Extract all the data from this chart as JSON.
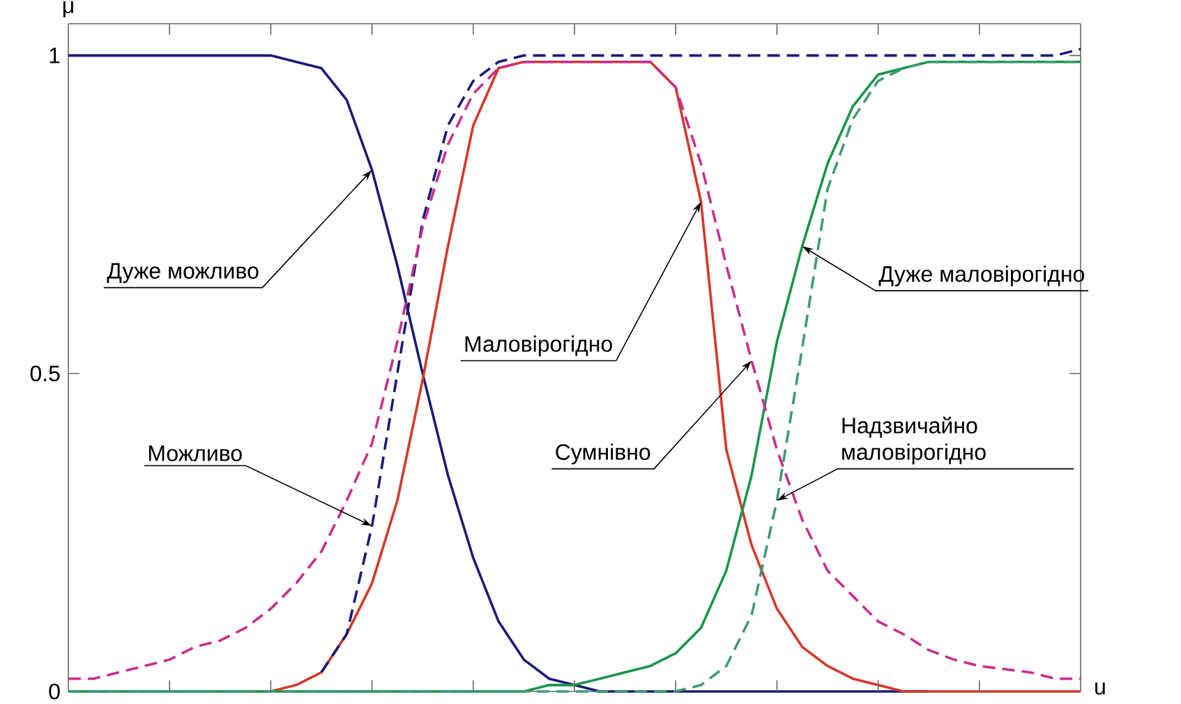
{
  "chart_data": {
    "type": "line",
    "xlabel": "u",
    "ylabel": "μ",
    "categories": [
      null,
      null,
      null,
      null,
      null,
      null,
      null,
      null,
      null,
      null,
      null,
      null,
      null,
      null,
      null,
      null,
      null,
      null,
      null,
      null,
      null,
      null,
      null,
      null,
      null,
      null,
      null,
      null,
      null,
      null,
      null,
      null,
      null,
      null,
      null,
      null,
      null,
      null,
      null,
      null,
      null
    ],
    "ylim": [
      0,
      1.05
    ],
    "yticks": [
      0,
      0.5,
      1
    ],
    "tick_labels": "y",
    "annotations": [
      "Дуже можливо",
      "Можливо",
      "Маловірогідно",
      "Сумнівно",
      "Дуже маловірогідно",
      "Надзвичайно маловірогідно"
    ],
    "series": [
      {
        "color": "#1c1a78",
        "line_style": "solid",
        "values": [
          1,
          1,
          1,
          1,
          1,
          1,
          1,
          1,
          1,
          0.99,
          0.98,
          0.93,
          0.82,
          0.67,
          0.5,
          0.34,
          0.21,
          0.11,
          0.05,
          0.02,
          0.01,
          0,
          0,
          0,
          0,
          0,
          0,
          0,
          0,
          0,
          0,
          0,
          0,
          0,
          0,
          null,
          null,
          null,
          null,
          null,
          null
        ]
      },
      {
        "color": "#1c1a78",
        "line_style": "dashed",
        "values": [
          null,
          null,
          null,
          null,
          null,
          null,
          null,
          null,
          null,
          null,
          0.03,
          0.09,
          0.26,
          0.5,
          0.74,
          0.89,
          0.96,
          0.99,
          1,
          1,
          1,
          1,
          1,
          1,
          1,
          1,
          1,
          1,
          1,
          1,
          1,
          1,
          1,
          1,
          1,
          1,
          1,
          1,
          1,
          1,
          1.01
        ]
      },
      {
        "color": "#d6372b",
        "line_style": "solid",
        "values": [
          null,
          null,
          null,
          null,
          null,
          null,
          null,
          0,
          0,
          0.01,
          0.03,
          0.09,
          0.17,
          0.3,
          0.49,
          0.7,
          0.89,
          0.98,
          0.99,
          0.99,
          0.99,
          0.99,
          0.99,
          0.99,
          0.95,
          0.77,
          0.38,
          0.23,
          0.13,
          0.07,
          0.04,
          0.02,
          0.01,
          0,
          0,
          0,
          0,
          0,
          0,
          0,
          0
        ]
      },
      {
        "color": "#cc2c8c",
        "line_style": "dashed",
        "values": [
          0.02,
          0.02,
          0.03,
          0.04,
          0.05,
          0.07,
          0.08,
          0.1,
          0.13,
          0.17,
          0.22,
          0.3,
          0.39,
          0.55,
          0.73,
          0.86,
          0.94,
          0.98,
          0.99,
          0.99,
          0.99,
          0.99,
          0.99,
          0.99,
          0.95,
          0.83,
          0.67,
          0.52,
          0.38,
          0.27,
          0.19,
          0.15,
          0.11,
          0.09,
          0.065,
          0.05,
          0.04,
          0.035,
          0.03,
          0.02,
          0.02
        ]
      },
      {
        "color": "#17964a",
        "line_style": "solid",
        "values": [
          0,
          0,
          0,
          0,
          0,
          0,
          0,
          0,
          0,
          0,
          0,
          0,
          0,
          0,
          0,
          0,
          0,
          0,
          0,
          0.01,
          0.01,
          0.02,
          0.03,
          0.04,
          0.06,
          0.1,
          0.19,
          0.34,
          0.55,
          0.7,
          0.83,
          0.92,
          0.97,
          0.98,
          0.99,
          0.99,
          0.99,
          0.99,
          0.99,
          0.99,
          0.99
        ]
      },
      {
        "color": "#3f9a73",
        "line_style": "dashed",
        "values": [
          0,
          0,
          0,
          0,
          0,
          0,
          0,
          0,
          0,
          0,
          0,
          0,
          0,
          0,
          0,
          0,
          0,
          0,
          0,
          0,
          0,
          0,
          0,
          0,
          0,
          0.01,
          0.04,
          0.12,
          0.3,
          0.54,
          0.79,
          0.9,
          0.96,
          0.98,
          0.99,
          0.99,
          0.99,
          0.99,
          0.99,
          0.99,
          0.99
        ]
      }
    ]
  }
}
